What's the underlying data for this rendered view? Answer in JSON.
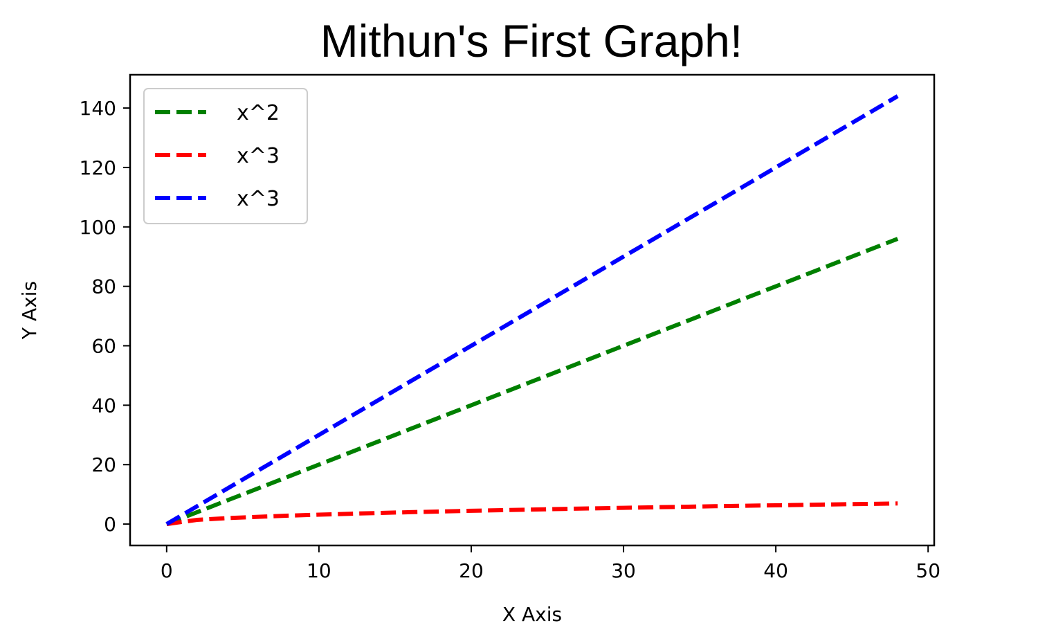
{
  "chart_data": {
    "type": "line",
    "title": "Mithun's First Graph!",
    "xlabel": "X Axis",
    "ylabel": "Y Axis",
    "xlim": [
      -2.4,
      50.4
    ],
    "ylim": [
      -7.2,
      151.2
    ],
    "xticks": [
      0,
      10,
      20,
      30,
      40,
      50
    ],
    "yticks": [
      0,
      20,
      40,
      60,
      80,
      100,
      120,
      140
    ],
    "legend_position": "top-left",
    "grid": false,
    "series": [
      {
        "name": "x^2",
        "color": "#008000",
        "style": "dashed",
        "x": [
          0,
          2,
          4,
          6,
          8,
          10,
          12,
          14,
          16,
          18,
          20,
          22,
          24,
          26,
          28,
          30,
          32,
          34,
          36,
          38,
          40,
          42,
          44,
          46,
          48
        ],
        "y": [
          0,
          4,
          8,
          12,
          16,
          20,
          24,
          28,
          32,
          36,
          40,
          44,
          48,
          52,
          56,
          60,
          64,
          68,
          72,
          76,
          80,
          84,
          88,
          92,
          96
        ]
      },
      {
        "name": "x^3",
        "color": "#ff0000",
        "style": "dashed",
        "x": [
          0,
          2,
          4,
          6,
          8,
          10,
          12,
          14,
          16,
          18,
          20,
          22,
          24,
          26,
          28,
          30,
          32,
          34,
          36,
          38,
          40,
          42,
          44,
          46,
          48
        ],
        "y": [
          0,
          1.41,
          2.0,
          2.45,
          2.83,
          3.16,
          3.46,
          3.74,
          4.0,
          4.24,
          4.47,
          4.69,
          4.9,
          5.1,
          5.29,
          5.48,
          5.66,
          5.83,
          6.0,
          6.16,
          6.32,
          6.48,
          6.63,
          6.78,
          6.93
        ]
      },
      {
        "name": "x^3",
        "color": "#0000ff",
        "style": "dashed",
        "x": [
          0,
          2,
          4,
          6,
          8,
          10,
          12,
          14,
          16,
          18,
          20,
          22,
          24,
          26,
          28,
          30,
          32,
          34,
          36,
          38,
          40,
          42,
          44,
          46,
          48
        ],
        "y": [
          0,
          6,
          12,
          18,
          24,
          30,
          36,
          42,
          48,
          54,
          60,
          66,
          72,
          78,
          84,
          90,
          96,
          102,
          108,
          114,
          120,
          126,
          132,
          138,
          144
        ]
      }
    ]
  }
}
